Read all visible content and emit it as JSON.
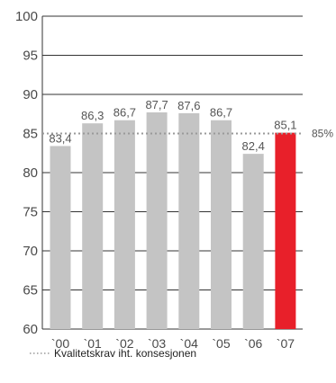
{
  "chart_data": {
    "type": "bar",
    "title": "",
    "xlabel": "",
    "ylabel": "",
    "categories": [
      "`00",
      "`01",
      "`02",
      "`03",
      "`04",
      "`05",
      "`06",
      "`07"
    ],
    "values": [
      83.4,
      86.3,
      86.7,
      87.7,
      87.6,
      86.7,
      82.4,
      85.1
    ],
    "value_labels": [
      "83,4",
      "86,3",
      "86,7",
      "87,7",
      "87,6",
      "86,7",
      "82,4",
      "85,1"
    ],
    "ylim": [
      60,
      100
    ],
    "yticks": [
      60,
      65,
      70,
      75,
      80,
      85,
      90,
      95,
      100
    ],
    "grid": true,
    "colors": {
      "bar": "#c4c4c4",
      "highlight_bar": "#e8202a",
      "reference_line": "#9a9a9a",
      "grid": "#333333"
    },
    "highlight_index": 7,
    "reference_line": {
      "value": 85,
      "label": "85%"
    },
    "legend": {
      "placement": "bottom-left",
      "entries": [
        {
          "label": "Kvalitetskrav iht. konsesjonen",
          "style": "dotted-line"
        }
      ]
    }
  }
}
